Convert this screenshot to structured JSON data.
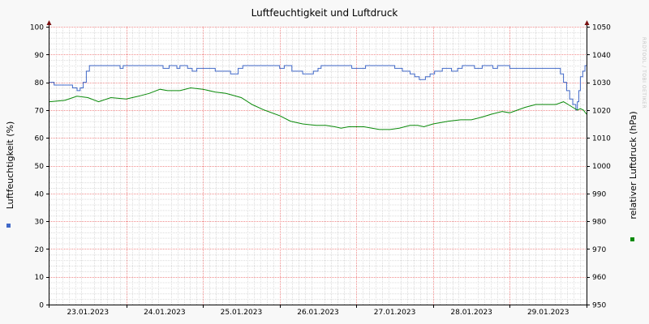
{
  "chart_data": {
    "type": "line",
    "title": "Luftfeuchtigkeit und Luftdruck",
    "ylabel": "Luftfeuchtigkeit (%)",
    "ylabel_right": "relativer Luftdruck (hPa)",
    "watermark": "RRDTOOL / TOBI OETIKER",
    "ylim": [
      0,
      100
    ],
    "ylim_right": [
      950,
      1050
    ],
    "yticks": [
      0,
      10,
      20,
      30,
      40,
      50,
      60,
      70,
      80,
      90,
      100
    ],
    "yticks_right": [
      950,
      960,
      970,
      980,
      990,
      1000,
      1010,
      1020,
      1030,
      1040,
      1050
    ],
    "xlim": [
      0,
      7
    ],
    "x_unit": "days from 22.01.2023 12:00",
    "xtick_labels": [
      {
        "x": 0.5,
        "label": "23.01.2023"
      },
      {
        "x": 1.5,
        "label": "24.01.2023"
      },
      {
        "x": 2.5,
        "label": "25.01.2023"
      },
      {
        "x": 3.5,
        "label": "26.01.2023"
      },
      {
        "x": 4.5,
        "label": "27.01.2023"
      },
      {
        "x": 5.5,
        "label": "28.01.2023"
      },
      {
        "x": 6.5,
        "label": "29.01.2023"
      }
    ],
    "major_grid_x": [
      1,
      2,
      3,
      4,
      5,
      6
    ],
    "grid": true,
    "series": [
      {
        "axis": "left",
        "color": "#4169c8",
        "step": true,
        "points": [
          [
            0.0,
            80
          ],
          [
            0.06,
            79
          ],
          [
            0.3,
            78
          ],
          [
            0.36,
            77
          ],
          [
            0.4,
            78
          ],
          [
            0.44,
            80
          ],
          [
            0.48,
            84
          ],
          [
            0.52,
            86
          ],
          [
            0.92,
            85
          ],
          [
            0.96,
            86
          ],
          [
            1.4,
            86
          ],
          [
            1.48,
            85
          ],
          [
            1.56,
            86
          ],
          [
            1.66,
            85
          ],
          [
            1.7,
            86
          ],
          [
            1.8,
            85
          ],
          [
            1.86,
            84
          ],
          [
            1.92,
            85
          ],
          [
            2.0,
            85
          ],
          [
            2.16,
            84
          ],
          [
            2.36,
            83
          ],
          [
            2.46,
            85
          ],
          [
            2.52,
            86
          ],
          [
            3.0,
            85
          ],
          [
            3.06,
            86
          ],
          [
            3.16,
            84
          ],
          [
            3.3,
            83
          ],
          [
            3.44,
            84
          ],
          [
            3.5,
            85
          ],
          [
            3.54,
            86
          ],
          [
            3.94,
            85
          ],
          [
            4.12,
            86
          ],
          [
            4.5,
            85
          ],
          [
            4.6,
            84
          ],
          [
            4.7,
            83
          ],
          [
            4.76,
            82
          ],
          [
            4.82,
            81
          ],
          [
            4.9,
            82
          ],
          [
            4.96,
            83
          ],
          [
            5.02,
            84
          ],
          [
            5.12,
            85
          ],
          [
            5.24,
            84
          ],
          [
            5.32,
            85
          ],
          [
            5.38,
            86
          ],
          [
            5.54,
            85
          ],
          [
            5.64,
            86
          ],
          [
            5.78,
            85
          ],
          [
            5.84,
            86
          ],
          [
            6.0,
            85
          ],
          [
            6.5,
            85
          ],
          [
            6.6,
            85
          ],
          [
            6.66,
            83
          ],
          [
            6.7,
            80
          ],
          [
            6.74,
            77
          ],
          [
            6.78,
            74
          ],
          [
            6.82,
            72
          ],
          [
            6.86,
            70
          ],
          [
            6.88,
            73
          ],
          [
            6.9,
            77
          ],
          [
            6.92,
            82
          ],
          [
            6.95,
            84
          ],
          [
            6.98,
            86
          ],
          [
            7.0,
            86
          ]
        ]
      },
      {
        "axis": "right",
        "color": "#0a8a0a",
        "step": false,
        "points": [
          [
            0.0,
            1023
          ],
          [
            0.2,
            1023.5
          ],
          [
            0.36,
            1025
          ],
          [
            0.5,
            1024.5
          ],
          [
            0.64,
            1023
          ],
          [
            0.8,
            1024.5
          ],
          [
            1.0,
            1024
          ],
          [
            1.16,
            1025
          ],
          [
            1.3,
            1026
          ],
          [
            1.44,
            1027.5
          ],
          [
            1.54,
            1027
          ],
          [
            1.7,
            1027
          ],
          [
            1.84,
            1028
          ],
          [
            2.0,
            1027.5
          ],
          [
            2.16,
            1026.5
          ],
          [
            2.3,
            1026
          ],
          [
            2.5,
            1024.5
          ],
          [
            2.64,
            1022
          ],
          [
            2.8,
            1020
          ],
          [
            3.0,
            1018
          ],
          [
            3.14,
            1016
          ],
          [
            3.3,
            1015
          ],
          [
            3.48,
            1014.5
          ],
          [
            3.6,
            1014.5
          ],
          [
            3.72,
            1014
          ],
          [
            3.8,
            1013.5
          ],
          [
            3.9,
            1014
          ],
          [
            4.1,
            1014
          ],
          [
            4.3,
            1013
          ],
          [
            4.44,
            1013
          ],
          [
            4.56,
            1013.5
          ],
          [
            4.7,
            1014.5
          ],
          [
            4.8,
            1014.5
          ],
          [
            4.88,
            1014
          ],
          [
            5.0,
            1015
          ],
          [
            5.2,
            1016
          ],
          [
            5.36,
            1016.5
          ],
          [
            5.5,
            1016.5
          ],
          [
            5.64,
            1017.5
          ],
          [
            5.76,
            1018.5
          ],
          [
            5.9,
            1019.5
          ],
          [
            6.0,
            1019
          ],
          [
            6.1,
            1020
          ],
          [
            6.2,
            1021
          ],
          [
            6.34,
            1022
          ],
          [
            6.5,
            1022
          ],
          [
            6.6,
            1022
          ],
          [
            6.7,
            1023
          ],
          [
            6.76,
            1022
          ],
          [
            6.82,
            1021
          ],
          [
            6.88,
            1020
          ],
          [
            6.92,
            1020.5
          ],
          [
            6.96,
            1020
          ],
          [
            7.0,
            1018.5
          ]
        ]
      }
    ],
    "legend": [
      {
        "axis": "left",
        "color": "#4169c8"
      },
      {
        "axis": "right",
        "color": "#0a8a0a"
      }
    ]
  }
}
